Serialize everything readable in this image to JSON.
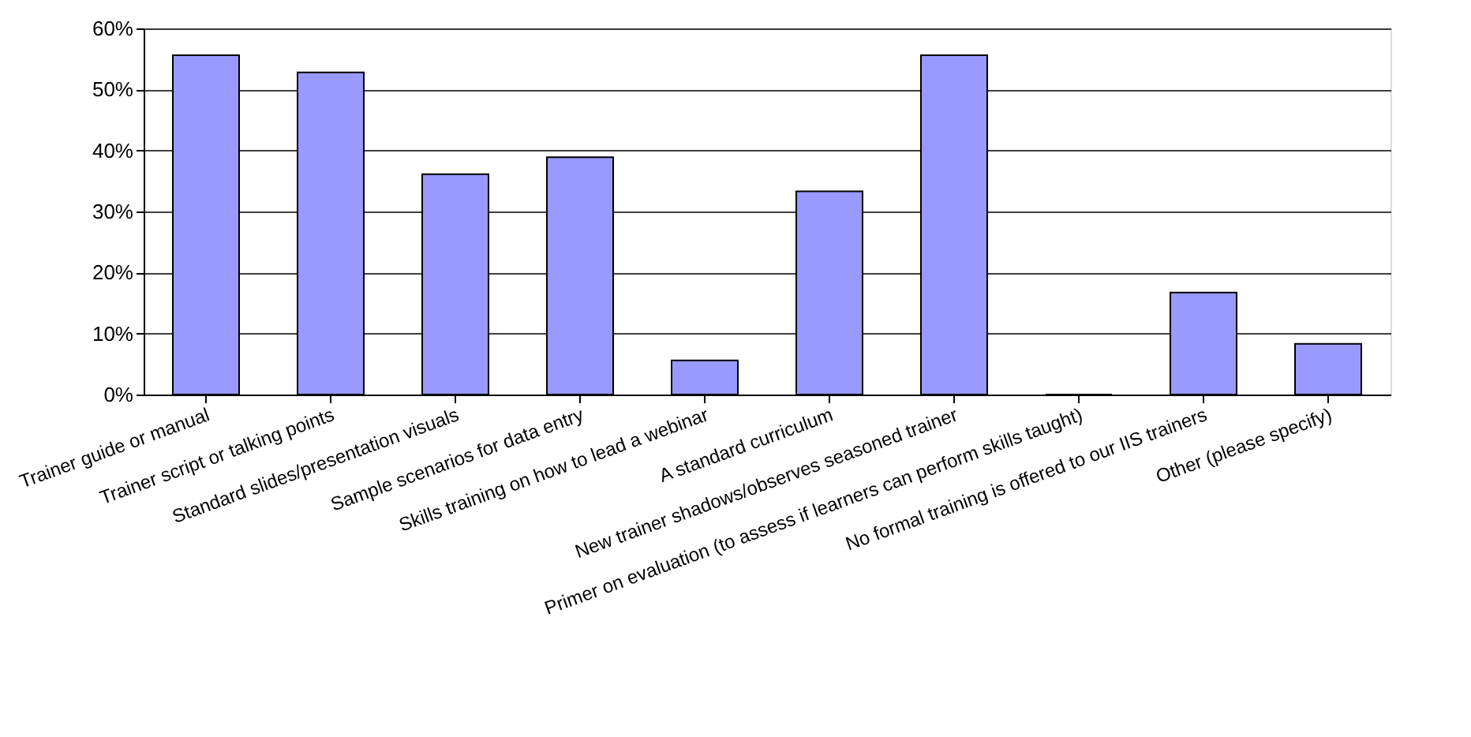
{
  "chart_data": {
    "type": "bar",
    "categories": [
      "Trainer guide or manual",
      "Trainer script or talking points",
      "Standard slides/presentation visuals",
      "Sample scenarios for data entry",
      "Skills training on how to lead a webinar",
      "A standard curriculum",
      "New trainer shadows/observes seasoned trainer",
      "Primer on evaluation (to assess if learners can perform skills taught)",
      "No formal training is offered to our IIS trainers",
      "Other (please specify)"
    ],
    "values": [
      55.6,
      52.8,
      36.1,
      38.9,
      5.6,
      33.3,
      55.6,
      0,
      16.7,
      8.3
    ],
    "color": "#9999ff",
    "ylim": [
      0,
      60
    ],
    "yticks": [
      {
        "value": 0,
        "label": "0%"
      },
      {
        "value": 10,
        "label": "10%"
      },
      {
        "value": 20,
        "label": "20%"
      },
      {
        "value": 30,
        "label": "30%"
      },
      {
        "value": 40,
        "label": "40%"
      },
      {
        "value": 50,
        "label": "50%"
      },
      {
        "value": 60,
        "label": "60%"
      }
    ],
    "grid": "y"
  }
}
